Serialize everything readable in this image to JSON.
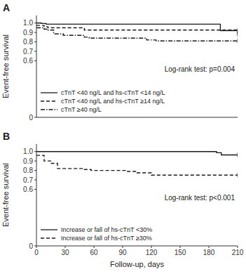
{
  "chart_data": [
    {
      "type": "step",
      "title": "A",
      "annotation": "Log-rank test: p=0.004",
      "y_label": "Event-free survival",
      "xlim": [
        0,
        210
      ],
      "ylim": [
        0,
        1.08
      ],
      "yticks": [
        0,
        0.6,
        0.7,
        0.8,
        0.9,
        {
          "value": 1.0,
          "label": "1.0"
        }
      ],
      "tick_labels": "y",
      "grid": false,
      "legend": "lower left",
      "series": [
        {
          "name": "cTnT <40 ng/L and hs-cTnT <14 ng/L",
          "line_style": "solid",
          "color": "#1a1a1a",
          "x": [
            0,
            3,
            5,
            10,
            55,
            185,
            192,
            210
          ],
          "values": [
            1.0,
            1.0,
            0.995,
            0.988,
            0.988,
            0.988,
            0.92,
            0.92
          ]
        },
        {
          "name": "cTnT <40 ng/L and hs-cTnT ≥14 ng/L",
          "line_style": "dashed",
          "color": "#1a1a1a",
          "x": [
            0,
            3,
            8,
            12,
            50,
            185,
            210
          ],
          "values": [
            0.975,
            0.975,
            0.96,
            0.95,
            0.925,
            0.925,
            0.88
          ]
        },
        {
          "name": "cTnT ≥40 ng/L",
          "line_style": "dashdot",
          "color": "#1a1a1a",
          "x": [
            0,
            3,
            8,
            12,
            18,
            28,
            50,
            55,
            115,
            125,
            135,
            210
          ],
          "values": [
            0.95,
            0.95,
            0.935,
            0.925,
            0.885,
            0.87,
            0.85,
            0.84,
            0.82,
            0.81,
            0.81,
            0.81
          ]
        }
      ]
    },
    {
      "type": "step",
      "title": "B",
      "annotation": "Log-rank test: p<0.001",
      "x_label": "Follow-up, days",
      "y_label": "Event-free survival",
      "xlim": [
        0,
        210
      ],
      "ylim": [
        0,
        1.08
      ],
      "xticks": [
        0,
        30,
        60,
        90,
        120,
        150,
        180,
        210
      ],
      "yticks": [
        0,
        0.6,
        0.7,
        0.8,
        0.9,
        {
          "value": 1.0,
          "label": "1.0"
        }
      ],
      "grid": false,
      "legend": "lower left",
      "series": [
        {
          "name": "Increase or fall of hs-cTnT <30%",
          "line_style": "solid",
          "color": "#1a1a1a",
          "x": [
            0,
            3,
            7,
            110,
            188,
            193,
            210
          ],
          "values": [
            1.0,
            1.0,
            1.0,
            1.0,
            0.988,
            0.965,
            0.965
          ]
        },
        {
          "name": "Increase or fall of hs-cTnT ≥30%",
          "line_style": "dashed",
          "color": "#1a1a1a",
          "x": [
            0,
            3,
            8,
            15,
            22,
            50,
            57,
            95,
            105,
            120,
            132,
            210
          ],
          "values": [
            0.96,
            0.96,
            0.9,
            0.875,
            0.82,
            0.81,
            0.8,
            0.79,
            0.775,
            0.75,
            0.75,
            0.75
          ]
        }
      ]
    }
  ]
}
